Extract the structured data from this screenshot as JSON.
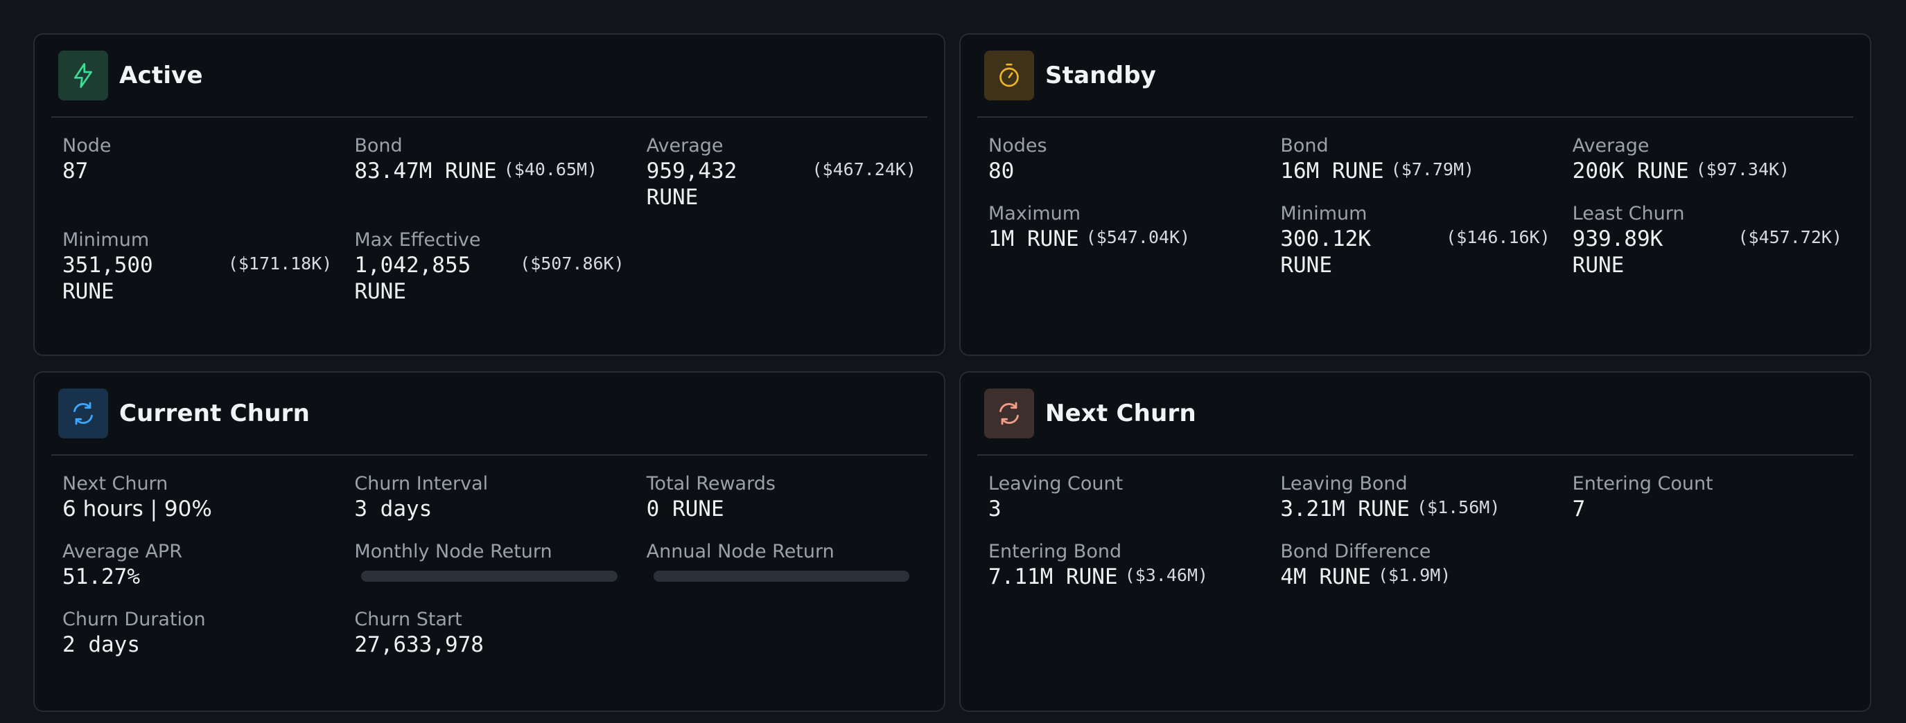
{
  "active": {
    "title": "Active",
    "node_label": "Node",
    "node_value": "87",
    "bond_label": "Bond",
    "bond_value": "83.47M RUNE",
    "bond_usd": "($40.65M)",
    "average_label": "Average",
    "average_value_1": "959,432",
    "average_value_2": "RUNE",
    "average_usd": "($467.24K)",
    "minimum_label": "Minimum",
    "minimum_value_1": "351,500",
    "minimum_value_2": "RUNE",
    "minimum_usd": "($171.18K)",
    "maxeff_label": "Max Effective",
    "maxeff_value_1": "1,042,855",
    "maxeff_value_2": "RUNE",
    "maxeff_usd": "($507.86K)"
  },
  "standby": {
    "title": "Standby",
    "nodes_label": "Nodes",
    "nodes_value": "80",
    "bond_label": "Bond",
    "bond_value": "16M RUNE",
    "bond_usd": "($7.79M)",
    "average_label": "Average",
    "average_value": "200K RUNE",
    "average_usd": "($97.34K)",
    "maximum_label": "Maximum",
    "maximum_value": "1M RUNE",
    "maximum_usd": "($547.04K)",
    "minimum_label": "Minimum",
    "minimum_value_1": "300.12K",
    "minimum_value_2": "RUNE",
    "minimum_usd": "($146.16K)",
    "least_label": "Least Churn",
    "least_value_1": "939.89K",
    "least_value_2": "RUNE",
    "least_usd": "($457.72K)"
  },
  "current_churn": {
    "title": "Current Churn",
    "next_label": "Next Churn",
    "next_value": "6 hours | 90%",
    "interval_label": "Churn Interval",
    "interval_value": "3 days",
    "rewards_label": "Total Rewards",
    "rewards_value": "0 RUNE",
    "apr_label": "Average APR",
    "apr_value": "51.27%",
    "monthly_label": "Monthly Node Return",
    "annual_label": "Annual Node Return",
    "duration_label": "Churn Duration",
    "duration_value": "2 days",
    "start_label": "Churn Start",
    "start_value": "27,633,978"
  },
  "next_churn": {
    "title": "Next Churn",
    "leaving_count_label": "Leaving Count",
    "leaving_count_value": "3",
    "leaving_bond_label": "Leaving Bond",
    "leaving_bond_value": "3.21M RUNE",
    "leaving_bond_usd": "($1.56M)",
    "entering_count_label": "Entering Count",
    "entering_count_value": "7",
    "entering_bond_label": "Entering Bond",
    "entering_bond_value": "7.11M RUNE",
    "entering_bond_usd": "($3.46M)",
    "bond_diff_label": "Bond Difference",
    "bond_diff_value": "4M RUNE",
    "bond_diff_usd": "($1.9M)"
  },
  "icons": {
    "active": "lightning-icon",
    "standby": "stopwatch-icon",
    "current_churn": "refresh-icon",
    "next_churn": "refresh-icon"
  },
  "colors": {
    "active_accent": "#3ddc97",
    "standby_accent": "#f0b429",
    "current_churn_accent": "#3ea6ff",
    "next_churn_accent": "#f29c8a"
  }
}
